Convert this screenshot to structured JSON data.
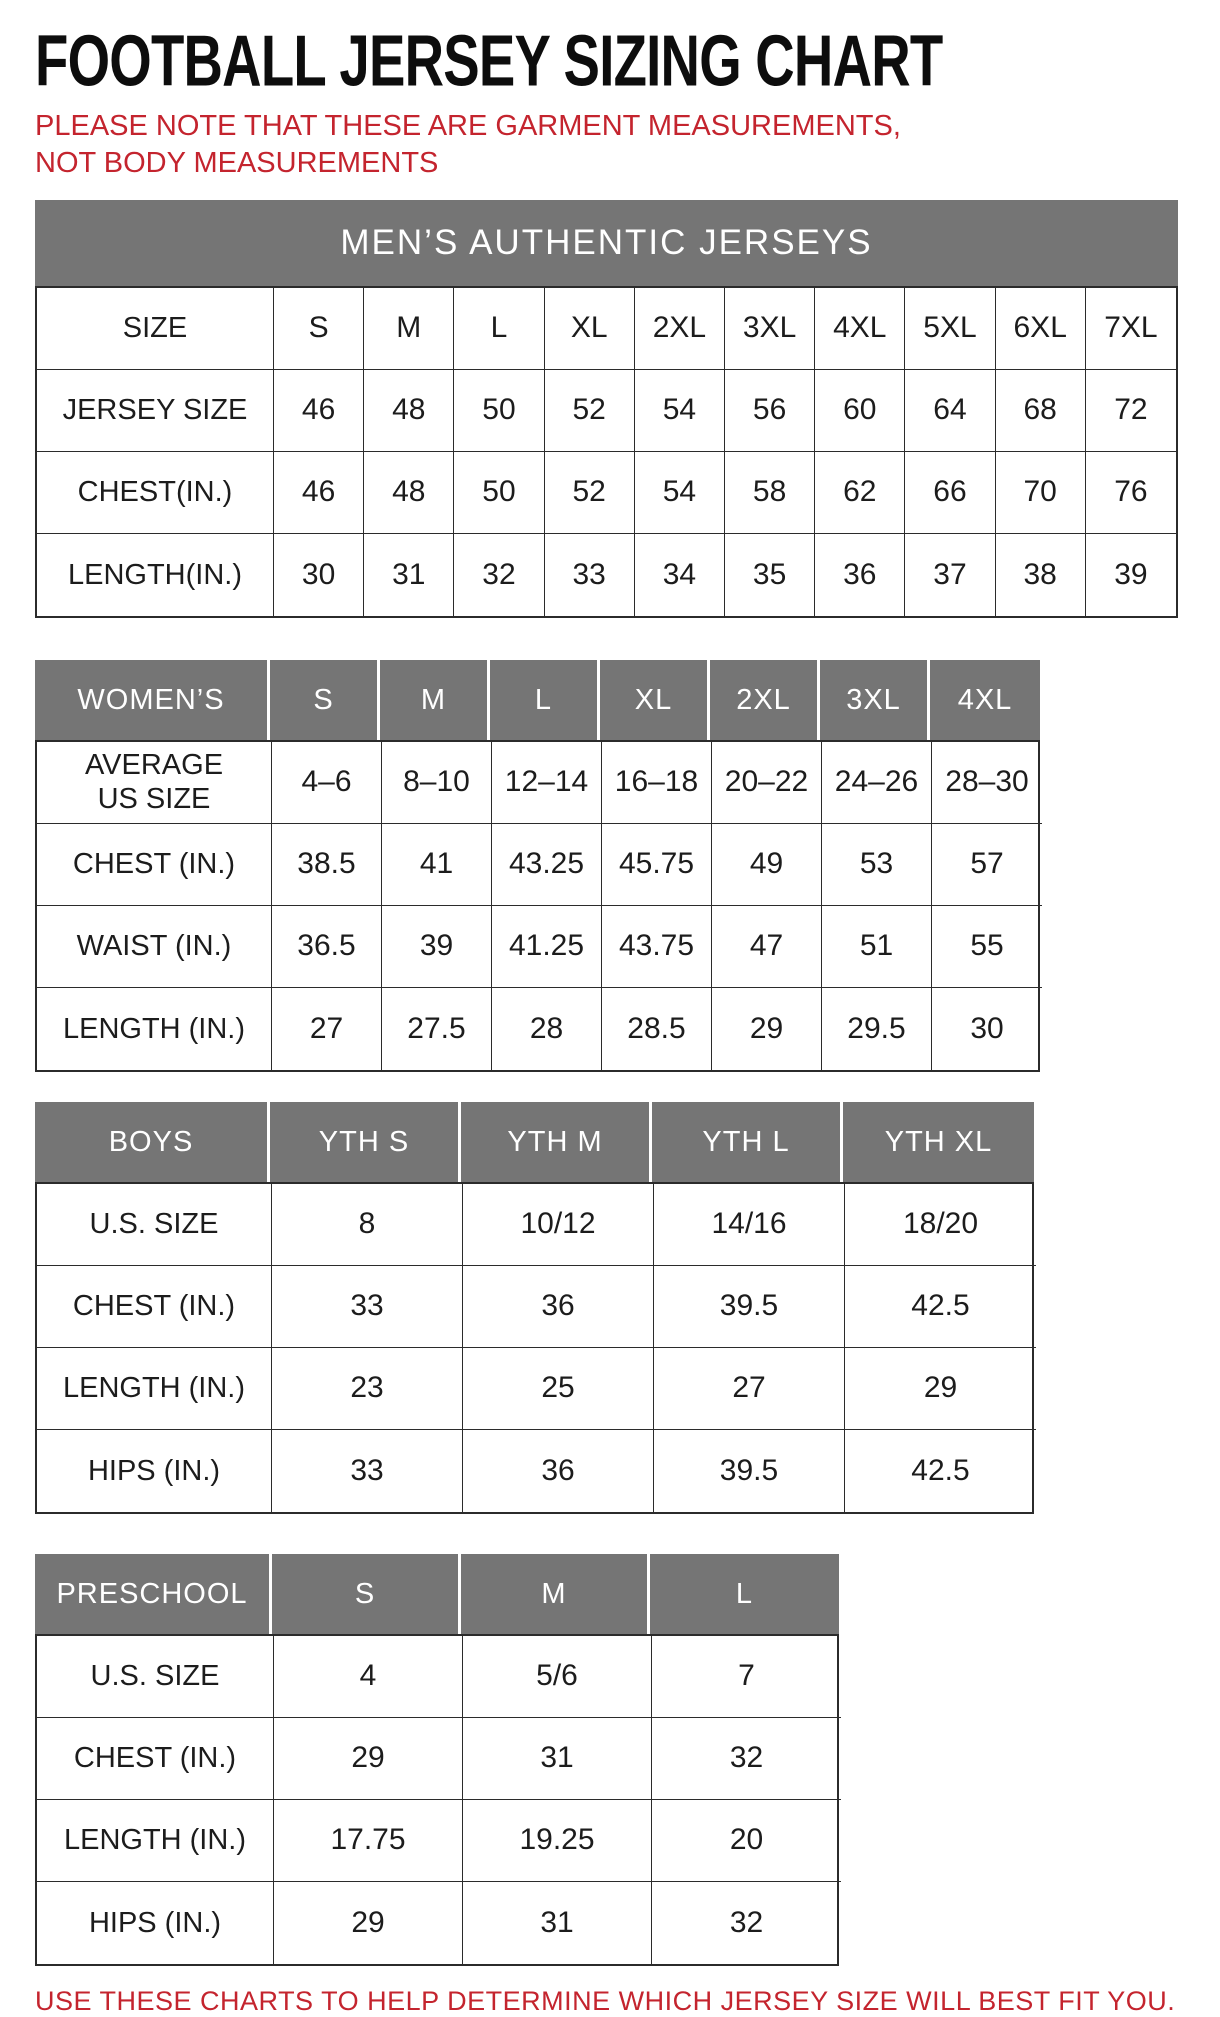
{
  "page": {
    "title": "FOOTBALL JERSEY SIZING CHART",
    "note": "PLEASE NOTE THAT THESE ARE GARMENT MEASUREMENTS, NOT BODY MEASUREMENTS",
    "footer": "USE THESE CHARTS TO HELP DETERMINE WHICH JERSEY SIZE WILL BEST FIT YOU."
  },
  "colors": {
    "header_gray": "#757575",
    "accent_red": "#C4242E"
  },
  "tables": {
    "mens": {
      "banner": "MEN’S AUTHENTIC JERSEYS",
      "rows": [
        {
          "label": "SIZE",
          "cells": [
            "S",
            "M",
            "L",
            "XL",
            "2XL",
            "3XL",
            "4XL",
            "5XL",
            "6XL",
            "7XL"
          ]
        },
        {
          "label": "JERSEY SIZE",
          "cells": [
            "46",
            "48",
            "50",
            "52",
            "54",
            "56",
            "60",
            "64",
            "68",
            "72"
          ]
        },
        {
          "label": "CHEST(IN.)",
          "cells": [
            "46",
            "48",
            "50",
            "52",
            "54",
            "58",
            "62",
            "66",
            "70",
            "76"
          ]
        },
        {
          "label": "LENGTH(IN.)",
          "cells": [
            "30",
            "31",
            "32",
            "33",
            "34",
            "35",
            "36",
            "37",
            "38",
            "39"
          ]
        }
      ]
    },
    "womens": {
      "header": [
        "WOMEN’S",
        "S",
        "M",
        "L",
        "XL",
        "2XL",
        "3XL",
        "4XL"
      ],
      "rows": [
        {
          "label": "AVERAGE\nUS SIZE",
          "cells": [
            "4–6",
            "8–10",
            "12–14",
            "16–18",
            "20–22",
            "24–26",
            "28–30"
          ]
        },
        {
          "label": "CHEST (IN.)",
          "cells": [
            "38.5",
            "41",
            "43.25",
            "45.75",
            "49",
            "53",
            "57"
          ]
        },
        {
          "label": "WAIST (IN.)",
          "cells": [
            "36.5",
            "39",
            "41.25",
            "43.75",
            "47",
            "51",
            "55"
          ]
        },
        {
          "label": "LENGTH (IN.)",
          "cells": [
            "27",
            "27.5",
            "28",
            "28.5",
            "29",
            "29.5",
            "30"
          ]
        }
      ]
    },
    "boys": {
      "header": [
        "BOYS",
        "YTH S",
        "YTH M",
        "YTH L",
        "YTH XL"
      ],
      "rows": [
        {
          "label": "U.S. SIZE",
          "cells": [
            "8",
            "10/12",
            "14/16",
            "18/20"
          ]
        },
        {
          "label": "CHEST (IN.)",
          "cells": [
            "33",
            "36",
            "39.5",
            "42.5"
          ]
        },
        {
          "label": "LENGTH (IN.)",
          "cells": [
            "23",
            "25",
            "27",
            "29"
          ]
        },
        {
          "label": "HIPS (IN.)",
          "cells": [
            "33",
            "36",
            "39.5",
            "42.5"
          ]
        }
      ]
    },
    "preschool": {
      "header": [
        "PRESCHOOL",
        "S",
        "M",
        "L"
      ],
      "rows": [
        {
          "label": "U.S. SIZE",
          "cells": [
            "4",
            "5/6",
            "7"
          ]
        },
        {
          "label": "CHEST (IN.)",
          "cells": [
            "29",
            "31",
            "32"
          ]
        },
        {
          "label": "LENGTH (IN.)",
          "cells": [
            "17.75",
            "19.25",
            "20"
          ]
        },
        {
          "label": "HIPS (IN.)",
          "cells": [
            "29",
            "31",
            "32"
          ]
        }
      ]
    }
  }
}
